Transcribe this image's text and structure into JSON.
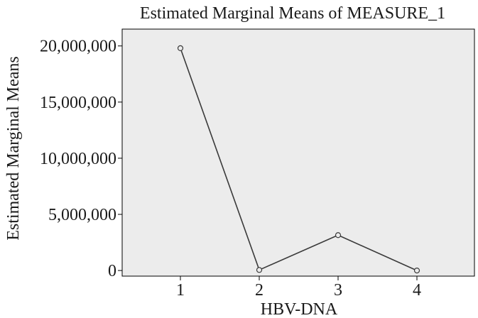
{
  "chart_data": {
    "type": "line",
    "title": "Estimated Marginal Means of MEASURE_1",
    "xlabel": "HBV-DNA",
    "ylabel": "Estimated Marginal Means",
    "categories": [
      "1",
      "2",
      "3",
      "4"
    ],
    "series": [
      {
        "values": [
          19800000,
          50000,
          3150000,
          0
        ]
      }
    ],
    "ylim": [
      -500000,
      21500000
    ],
    "yticks": [
      0,
      5000000,
      10000000,
      15000000,
      20000000
    ],
    "ytick_labels": [
      "0",
      "5,000,000",
      "10,000,000",
      "15,000,000",
      "20,000,000"
    ],
    "grid": false,
    "colors": {
      "plot_background": "#ececec",
      "line": "#3a3a3a",
      "marker_stroke": "#3a3a3a",
      "marker_fill": "#ececec"
    }
  }
}
